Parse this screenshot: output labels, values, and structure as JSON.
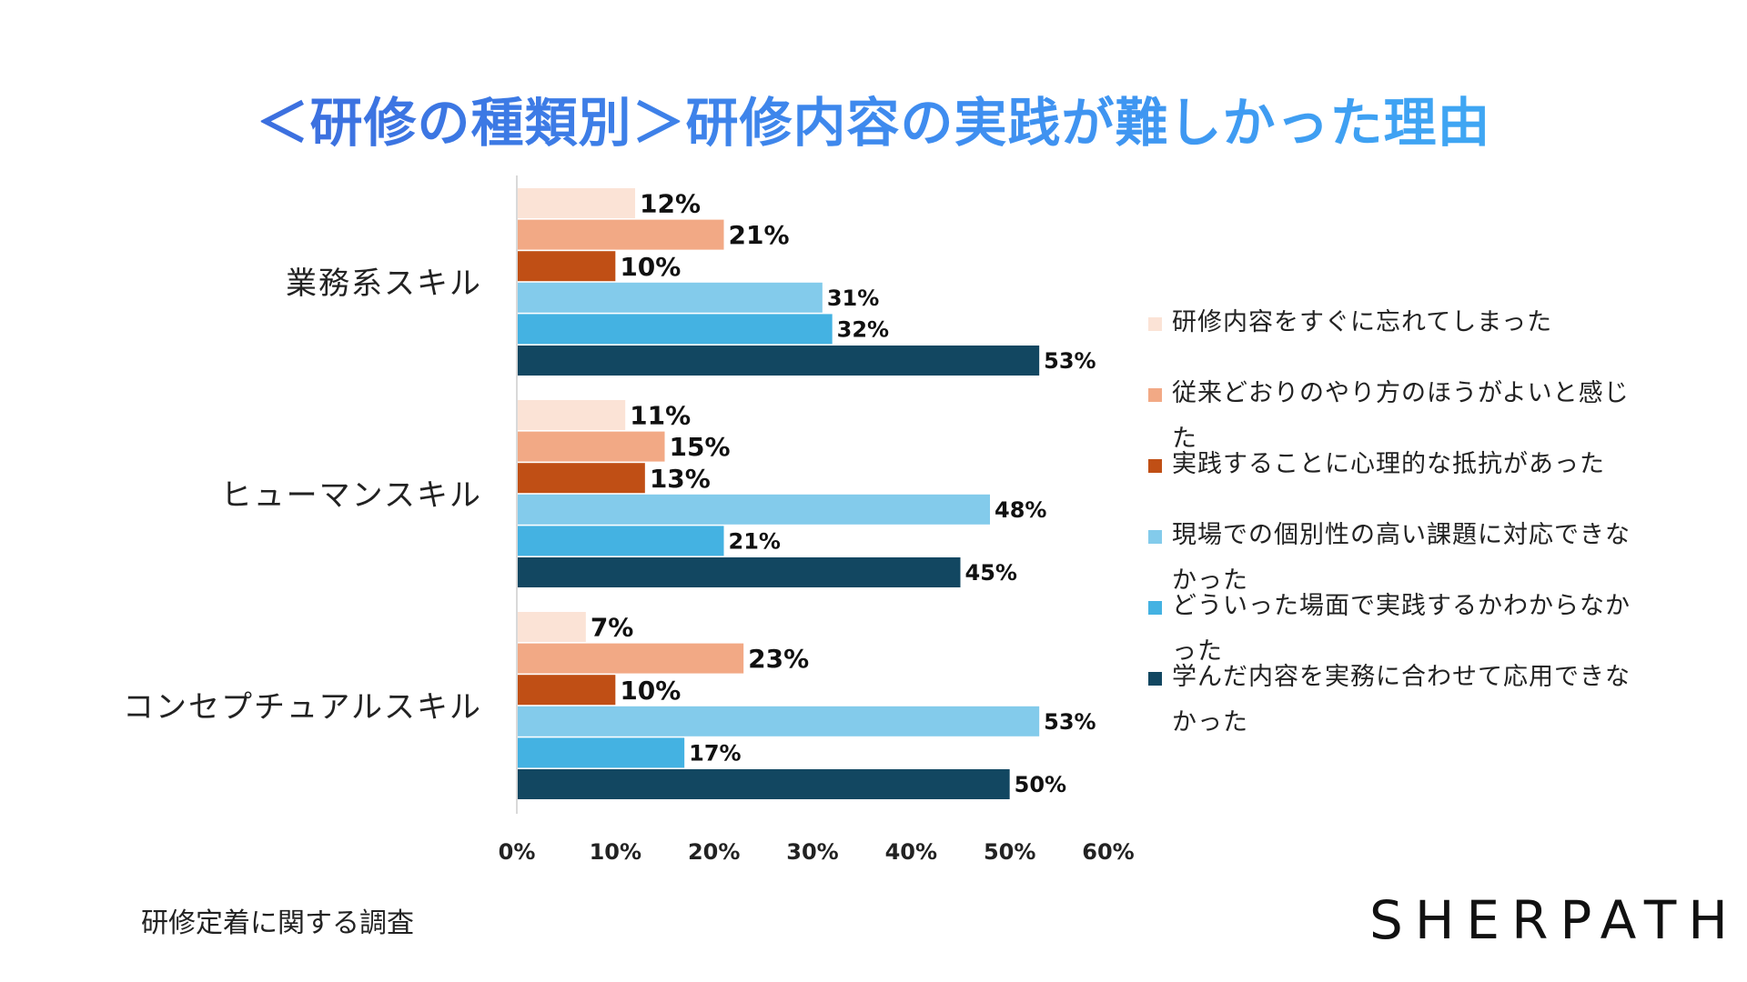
{
  "title": "＜研修の種類別＞研修内容の実践が難しかった理由",
  "source": "研修定着に関する調査",
  "logo": "SHERPATH",
  "chart_data": {
    "type": "bar",
    "orientation": "horizontal",
    "title": "＜研修の種類別＞研修内容の実践が難しかった理由",
    "categories": [
      "業務系スキル",
      "ヒューマンスキル",
      "コンセプチュアルスキル"
    ],
    "series": [
      {
        "name": "研修内容をすぐに忘れてしまった",
        "color": "#fbe3d6",
        "values": [
          12,
          11,
          7
        ],
        "labels": [
          "12%",
          "11%",
          "7%"
        ]
      },
      {
        "name": "従来どおりのやり方のほうがよいと感じた",
        "color": "#f2a985",
        "values": [
          21,
          15,
          23
        ],
        "labels": [
          "21%",
          "15%",
          "23%"
        ]
      },
      {
        "name": "実践することに心理的な抵抗があった",
        "color": "#c04f15",
        "values": [
          10,
          13,
          10
        ],
        "labels": [
          "10%",
          "13%",
          "10%"
        ]
      },
      {
        "name": "現場での個別性の高い課題に対応できなかった",
        "color": "#83cbeb",
        "values": [
          31,
          48,
          53
        ],
        "labels": [
          "31%",
          "48%",
          "53%"
        ]
      },
      {
        "name": "どういった場面で実践するかわからなかった",
        "color": "#44b2e2",
        "values": [
          32,
          21,
          17
        ],
        "labels": [
          "32%",
          "21%",
          "17%"
        ]
      },
      {
        "name": "学んだ内容を実務に合わせて応用できなかった",
        "color": "#124761",
        "values": [
          53,
          45,
          50
        ],
        "labels": [
          "53%",
          "45%",
          "50%"
        ]
      }
    ],
    "xlim": [
      0,
      60
    ],
    "xticks": [
      0,
      10,
      20,
      30,
      40,
      50,
      60
    ],
    "xtick_labels": [
      "0%",
      "10%",
      "20%",
      "30%",
      "40%",
      "50%",
      "60%"
    ],
    "grid": false,
    "legend_position": "right"
  }
}
